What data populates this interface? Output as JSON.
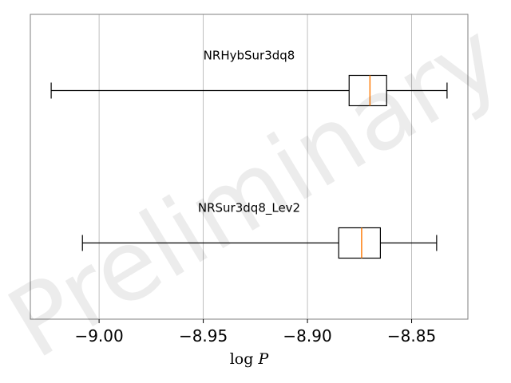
{
  "chart_data": {
    "type": "boxplot",
    "orientation": "horizontal",
    "title": "",
    "xlabel": "log P",
    "xlim": [
      -9.033,
      -8.823
    ],
    "xticks": [
      -9.0,
      -8.95,
      -8.9,
      -8.85
    ],
    "xtick_labels": [
      "−9.00",
      "−8.95",
      "−8.90",
      "−8.85"
    ],
    "grid": "x",
    "series": [
      {
        "name": "NRHybSur3dq8",
        "whisker_low": -9.023,
        "q1": -8.88,
        "median": -8.87,
        "q3": -8.862,
        "whisker_high": -8.833
      },
      {
        "name": "NRSur3dq8_Lev2",
        "whisker_low": -9.008,
        "q1": -8.885,
        "median": -8.874,
        "q3": -8.865,
        "whisker_high": -8.838
      }
    ],
    "watermark": "Preliminary",
    "colors": {
      "box": "#000000",
      "median": "#ff7f0e",
      "grid": "#b0b0b0",
      "frame": "#7f7f7f",
      "watermark": "#000000"
    }
  }
}
